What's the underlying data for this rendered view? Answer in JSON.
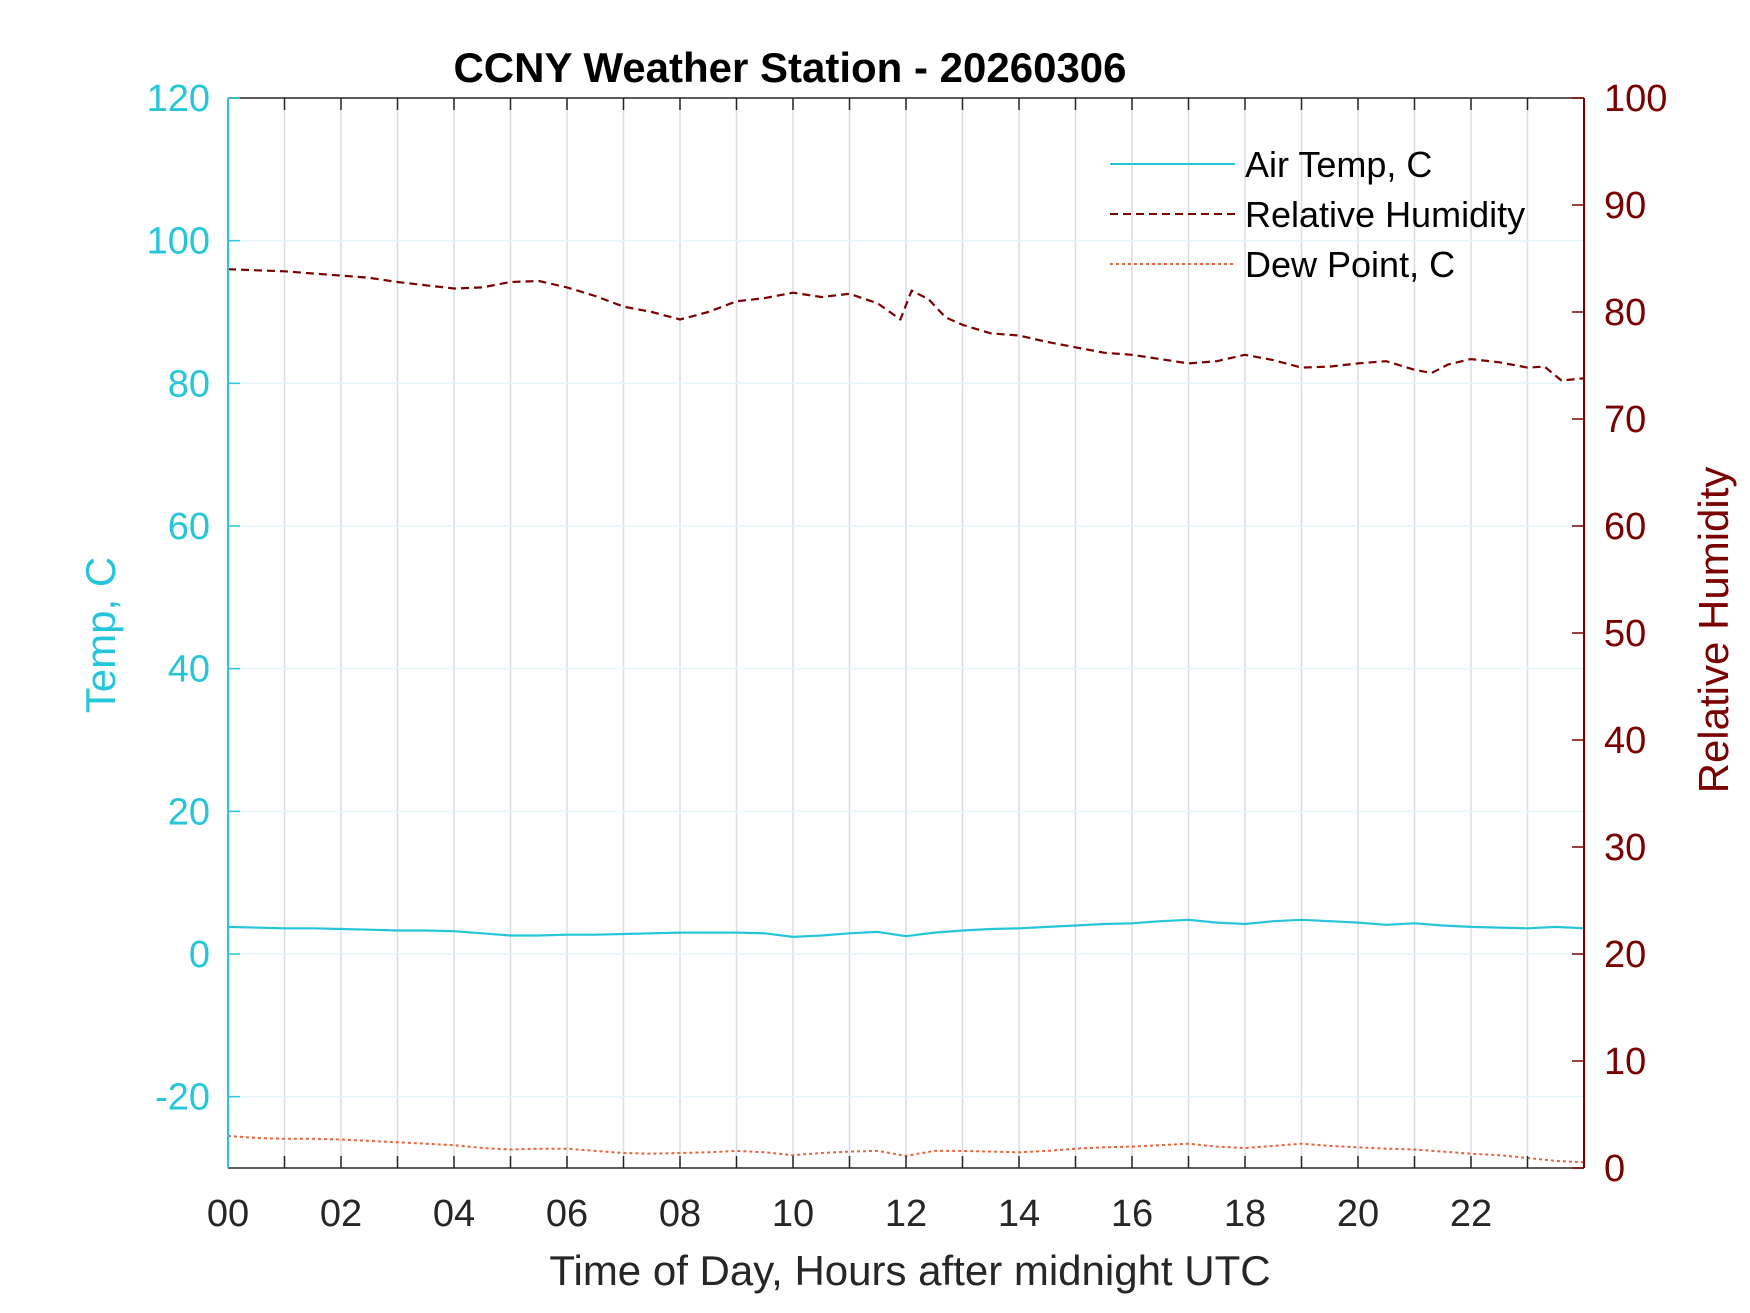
{
  "chart_data": {
    "type": "line",
    "title": "CCNY Weather Station - 20260306",
    "xlabel": "Time of Day, Hours after midnight UTC",
    "ylabel_left": "Temp, C",
    "ylabel_right": "Relative Humidity",
    "xlim": [
      0,
      24
    ],
    "ylim_left": [
      -30,
      120
    ],
    "ylim_right": [
      0,
      100
    ],
    "x_ticks": [
      0,
      2,
      4,
      6,
      8,
      10,
      12,
      14,
      16,
      18,
      20,
      22
    ],
    "x_tick_labels": [
      "00",
      "02",
      "04",
      "06",
      "08",
      "10",
      "12",
      "14",
      "16",
      "18",
      "20",
      "22"
    ],
    "y_left_ticks": [
      -20,
      0,
      20,
      40,
      60,
      80,
      100,
      120
    ],
    "y_right_ticks": [
      0,
      10,
      20,
      30,
      40,
      50,
      60,
      70,
      80,
      90,
      100
    ],
    "grid": true,
    "legend_position": "top-right",
    "colors": {
      "temp": "#26c6da",
      "humidity": "#7b0000",
      "dewpoint": "#e8643c",
      "grid": "#d6dde4",
      "left_grid": "#e3f7fa"
    },
    "series": [
      {
        "name": "Air Temp, C",
        "axis": "left",
        "style": "solid",
        "x": [
          0,
          0.5,
          1,
          1.5,
          2,
          2.5,
          3,
          3.5,
          4,
          4.5,
          5,
          5.5,
          6,
          6.5,
          7,
          7.5,
          8,
          8.5,
          9,
          9.5,
          10,
          10.5,
          11,
          11.5,
          12,
          12.5,
          13,
          13.5,
          14,
          14.5,
          15,
          15.5,
          16,
          16.5,
          17,
          17.5,
          18,
          18.5,
          19,
          19.5,
          20,
          20.5,
          21,
          21.5,
          22,
          22.5,
          23,
          23.5,
          24
        ],
        "values": [
          3.8,
          3.7,
          3.6,
          3.6,
          3.5,
          3.4,
          3.3,
          3.3,
          3.2,
          2.9,
          2.6,
          2.6,
          2.7,
          2.7,
          2.8,
          2.9,
          3.0,
          3.0,
          3.0,
          2.9,
          2.4,
          2.6,
          2.9,
          3.1,
          2.5,
          3.0,
          3.3,
          3.5,
          3.6,
          3.8,
          4.0,
          4.2,
          4.3,
          4.6,
          4.8,
          4.4,
          4.2,
          4.6,
          4.8,
          4.6,
          4.4,
          4.1,
          4.3,
          4.0,
          3.8,
          3.7,
          3.6,
          3.8,
          3.6
        ]
      },
      {
        "name": "Relative Humidity",
        "axis": "right",
        "style": "dashed",
        "x": [
          0,
          0.5,
          1,
          1.5,
          2,
          2.5,
          3,
          3.5,
          4,
          4.5,
          5,
          5.5,
          6,
          6.5,
          7,
          7.5,
          8,
          8.5,
          9,
          9.5,
          10,
          10.5,
          11,
          11.5,
          11.9,
          12.1,
          12.4,
          12.7,
          13,
          13.5,
          14,
          14.5,
          15,
          15.5,
          16,
          16.5,
          17,
          17.5,
          18,
          18.5,
          19,
          19.5,
          20,
          20.5,
          21,
          21.3,
          21.6,
          22,
          22.5,
          23,
          23.3,
          23.6,
          24
        ],
        "values": [
          84.0,
          83.9,
          83.8,
          83.6,
          83.4,
          83.2,
          82.8,
          82.5,
          82.2,
          82.3,
          82.8,
          82.9,
          82.3,
          81.5,
          80.5,
          80.0,
          79.3,
          80.0,
          81.0,
          81.3,
          81.8,
          81.4,
          81.7,
          80.8,
          79.3,
          82.0,
          81.2,
          79.5,
          78.8,
          78.0,
          77.8,
          77.2,
          76.7,
          76.2,
          76.0,
          75.6,
          75.2,
          75.4,
          76.0,
          75.5,
          74.8,
          74.9,
          75.2,
          75.4,
          74.6,
          74.3,
          75.1,
          75.6,
          75.3,
          74.8,
          74.9,
          73.6,
          73.8
        ]
      },
      {
        "name": "Dew Point, C",
        "axis": "left",
        "style": "dotted",
        "x": [
          0,
          0.5,
          1,
          1.5,
          2,
          2.5,
          3,
          3.5,
          4,
          4.5,
          5,
          5.5,
          6,
          6.5,
          7,
          7.5,
          8,
          8.5,
          9,
          9.5,
          10,
          10.5,
          11,
          11.5,
          12,
          12.5,
          13,
          13.5,
          14,
          14.5,
          15,
          15.5,
          16,
          16.5,
          17,
          17.5,
          18,
          18.5,
          19,
          19.5,
          20,
          20.5,
          21,
          21.5,
          22,
          22.5,
          23,
          23.5,
          24
        ],
        "values": [
          -25.5,
          -25.8,
          -25.9,
          -25.9,
          -26.0,
          -26.2,
          -26.4,
          -26.6,
          -26.8,
          -27.2,
          -27.4,
          -27.3,
          -27.3,
          -27.6,
          -27.9,
          -28.0,
          -27.9,
          -27.8,
          -27.6,
          -27.8,
          -28.2,
          -27.9,
          -27.7,
          -27.6,
          -28.3,
          -27.6,
          -27.6,
          -27.7,
          -27.8,
          -27.6,
          -27.3,
          -27.1,
          -27.0,
          -26.8,
          -26.6,
          -27.0,
          -27.2,
          -26.9,
          -26.6,
          -26.9,
          -27.1,
          -27.3,
          -27.4,
          -27.7,
          -28.0,
          -28.2,
          -28.6,
          -29.0,
          -29.2
        ]
      }
    ]
  }
}
